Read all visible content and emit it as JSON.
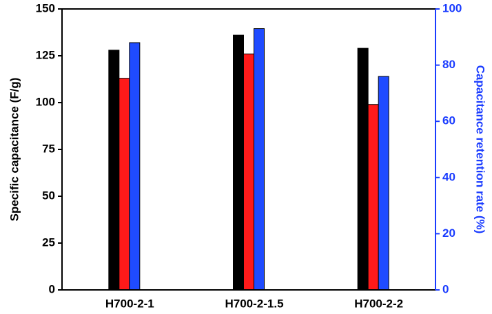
{
  "chart_data": {
    "type": "bar",
    "categories": [
      "H700-2-1",
      "H700-2-1.5",
      "H700-2-2"
    ],
    "series": [
      {
        "color": "#000000",
        "values": [
          128,
          136,
          129
        ]
      },
      {
        "color": "#ff1a1a",
        "values": [
          113,
          126,
          99
        ]
      },
      {
        "color": "#1f4bff",
        "values": [
          88,
          93,
          76
        ],
        "axis": "y2"
      }
    ],
    "ylabel": "Specific capacitance (F/g)",
    "y2label": "Capacitance retention rate (%)",
    "ylim": [
      0,
      150
    ],
    "yticks": [
      0,
      25,
      50,
      75,
      100,
      125,
      150
    ],
    "y2lim": [
      0,
      100
    ],
    "y2ticks": [
      0,
      20,
      40,
      60,
      80,
      100
    ],
    "y2color": "#1a3cff",
    "grid": false
  }
}
